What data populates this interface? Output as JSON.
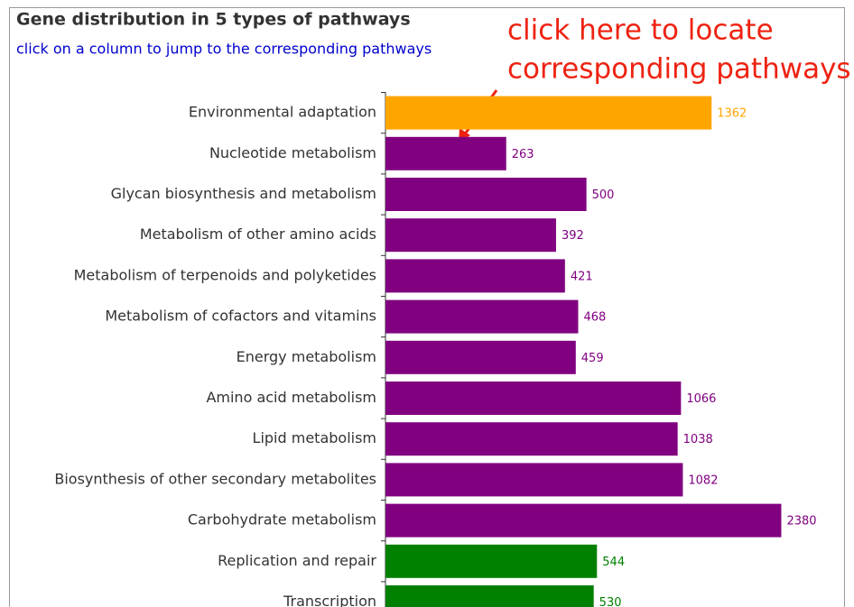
{
  "chart_data": {
    "type": "bar",
    "orientation": "horizontal",
    "title": "Gene distribution in 5 types of pathways",
    "subtitle": "click on a column to jump to the corresponding pathways",
    "annotations": [
      "click here to locate",
      "corresponding pathways"
    ],
    "categories": [
      "Environmental adaptation",
      "Nucleotide metabolism",
      "Glycan biosynthesis and metabolism",
      "Metabolism of other amino acids",
      "Metabolism of terpenoids and polyketides",
      "Metabolism of cofactors and vitamins",
      "Energy metabolism",
      "Amino acid metabolism",
      "Lipid metabolism",
      "Biosynthesis of other secondary metabolites",
      "Carbohydrate metabolism",
      "Replication and repair",
      "Transcription"
    ],
    "values": [
      1362,
      263,
      500,
      392,
      421,
      468,
      459,
      1066,
      1038,
      1082,
      2380,
      544,
      530
    ],
    "colors": [
      "#ffa500",
      "#800080",
      "#800080",
      "#800080",
      "#800080",
      "#800080",
      "#800080",
      "#800080",
      "#800080",
      "#800080",
      "#800080",
      "#008000",
      "#008000"
    ],
    "xlim": [
      100,
      10000
    ],
    "log_scale": true
  }
}
